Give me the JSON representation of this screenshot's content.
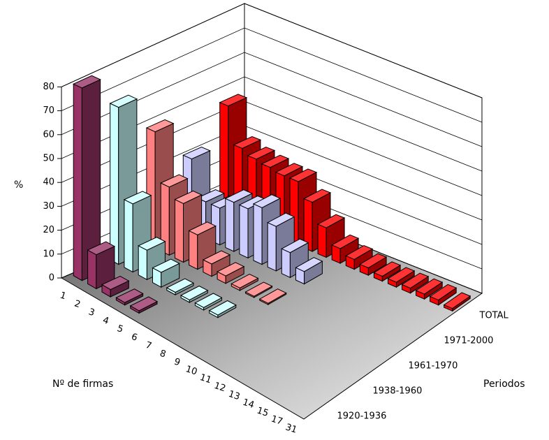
{
  "chart_data": {
    "type": "bar3d",
    "x_label": "Nº de firmas",
    "y_label": "%",
    "z_label": "Periodos",
    "categories": [
      "1",
      "2",
      "3",
      "4",
      "5",
      "6",
      "7",
      "8",
      "9",
      "10",
      "11",
      "12",
      "13",
      "14",
      "15",
      "17",
      "31"
    ],
    "series": [
      {
        "name": "1920-1936",
        "color": "#993366",
        "values": [
          80,
          14,
          3,
          1,
          1,
          null,
          null,
          null,
          null,
          null,
          null,
          null,
          null,
          null,
          null,
          null,
          null
        ]
      },
      {
        "name": "1938-1960",
        "color": "#ccffff",
        "values": [
          65,
          28,
          12,
          6,
          1,
          1,
          1,
          1,
          null,
          null,
          null,
          null,
          null,
          null,
          null,
          null,
          null
        ]
      },
      {
        "name": "1961-1970",
        "color": "#ff8080",
        "values": [
          48,
          28,
          24,
          14,
          5,
          3,
          1,
          0.5,
          0.5,
          null,
          null,
          null,
          null,
          null,
          null,
          null,
          null
        ]
      },
      {
        "name": "1971-2000",
        "color": "#ccccff",
        "values": [
          30,
          15,
          15,
          20,
          20,
          23,
          18,
          10,
          5,
          null,
          null,
          null,
          null,
          null,
          null,
          null,
          null
        ]
      },
      {
        "name": "TOTAL",
        "color": "#ff0000",
        "values": [
          45,
          30,
          28,
          27,
          26,
          26,
          20,
          12,
          6,
          4,
          3,
          2,
          2,
          2,
          2,
          2,
          1
        ]
      }
    ],
    "ylim": [
      0,
      80
    ],
    "yticks": [
      0,
      10,
      20,
      30,
      40,
      50,
      60,
      70,
      80
    ],
    "grid": true
  }
}
